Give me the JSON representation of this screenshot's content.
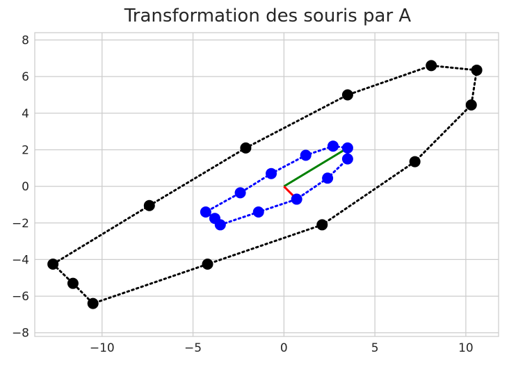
{
  "chart_data": {
    "type": "scatter",
    "title": "Transformation des souris par A",
    "xlabel": "",
    "ylabel": "",
    "xlim": [
      -13.7,
      11.8
    ],
    "ylim": [
      -8.2,
      8.4
    ],
    "xticks": [
      -10,
      -5,
      0,
      5,
      10
    ],
    "yticks": [
      -8,
      -6,
      -4,
      -2,
      0,
      2,
      4,
      6,
      8
    ],
    "xtick_labels": [
      "−10",
      "−5",
      "0",
      "5",
      "10"
    ],
    "ytick_labels": [
      "−8",
      "−6",
      "−4",
      "−2",
      "0",
      "2",
      "4",
      "6",
      "8"
    ],
    "grid": true,
    "style": "seaborn-whitegrid",
    "series": [
      {
        "color": "#000000",
        "marker": "circle",
        "line": "dotted",
        "closed": true,
        "points": [
          [
            -12.7,
            -4.25
          ],
          [
            -11.6,
            -5.3
          ],
          [
            -10.5,
            -6.4
          ],
          [
            -4.2,
            -4.25
          ],
          [
            2.1,
            -2.1
          ],
          [
            7.2,
            1.35
          ],
          [
            10.3,
            4.45
          ],
          [
            10.6,
            6.35
          ],
          [
            8.1,
            6.6
          ],
          [
            3.5,
            5.0
          ],
          [
            -2.1,
            2.1
          ],
          [
            -7.4,
            -1.05
          ]
        ]
      },
      {
        "color": "#0000ff",
        "marker": "circle",
        "line": "dotted",
        "closed": true,
        "points": [
          [
            -4.3,
            -1.4
          ],
          [
            -3.8,
            -1.75
          ],
          [
            -3.5,
            -2.1
          ],
          [
            -1.4,
            -1.4
          ],
          [
            0.7,
            -0.7
          ],
          [
            2.4,
            0.45
          ],
          [
            3.5,
            1.5
          ],
          [
            3.5,
            2.1
          ],
          [
            2.7,
            2.2
          ],
          [
            1.2,
            1.7
          ],
          [
            -0.7,
            0.7
          ],
          [
            -2.4,
            -0.35
          ]
        ]
      }
    ],
    "vectors": [
      {
        "color": "#008000",
        "from": [
          0,
          0
        ],
        "to": [
          3.5,
          2.1
        ]
      },
      {
        "color": "#ff0000",
        "from": [
          0,
          0
        ],
        "to": [
          0.7,
          -0.7
        ]
      }
    ]
  }
}
